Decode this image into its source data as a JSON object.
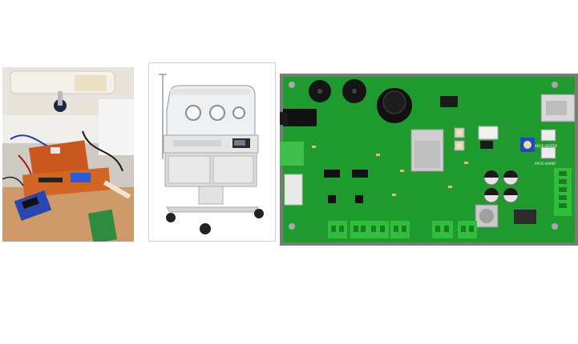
{
  "figure": {
    "panels": [
      {
        "id": "prototype-photo",
        "kind": "photograph"
      },
      {
        "id": "incubator-render",
        "kind": "product-image"
      },
      {
        "id": "pcb-render",
        "kind": "pcb-3d-render"
      }
    ],
    "pcb_labels": {
      "heater": "AROS HEATER",
      "humid": "AROS HUMID"
    },
    "colors": {
      "pcb": "#1f9a2f",
      "pcb_border": "#7a7a7a",
      "terminal": "#2fbf3a",
      "proto_board": "#c8581e"
    }
  }
}
